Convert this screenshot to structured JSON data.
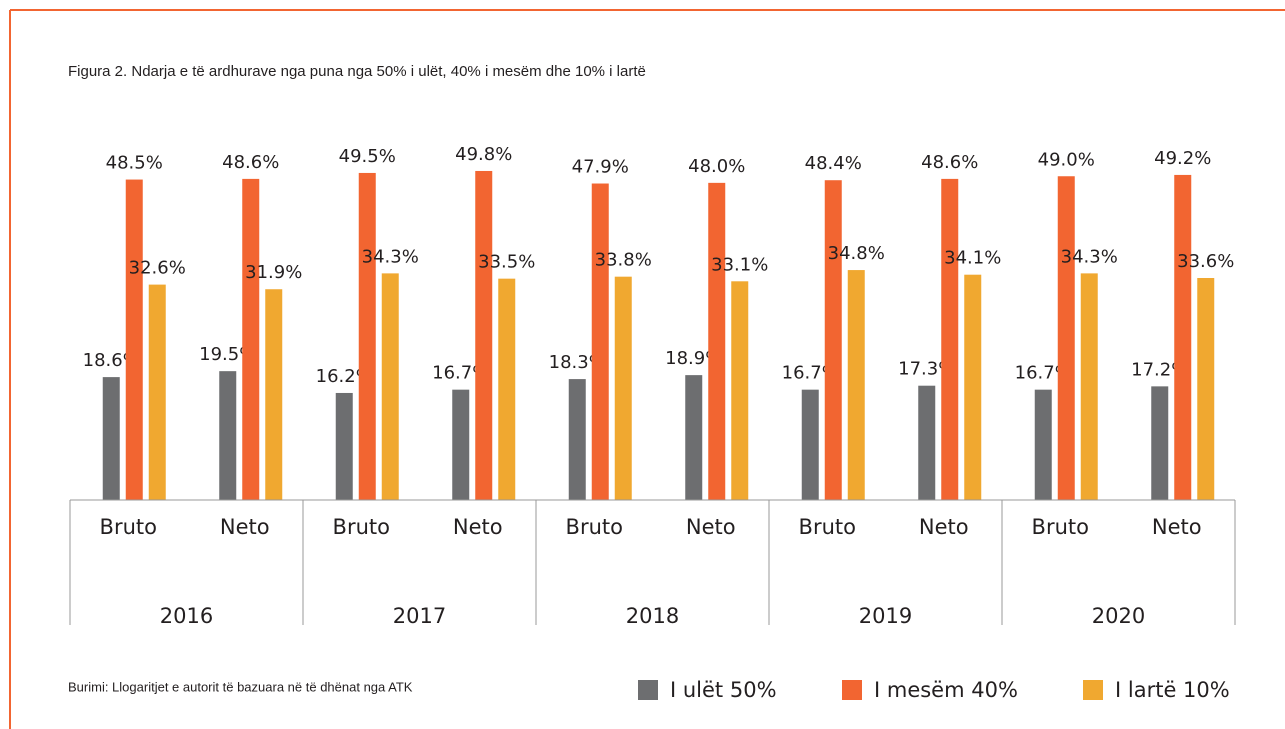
{
  "chart_data": {
    "type": "bar",
    "title": "Figura 2. Ndarja e të ardhurave nga puna nga 50% i ulët, 40% i mesëm dhe 10% i lartë",
    "source": "Burimi: Llogaritjet e autorit të bazuara në të dhënat nga ATK",
    "categories": [
      "Bruto",
      "Neto",
      "Bruto",
      "Neto",
      "Bruto",
      "Neto",
      "Bruto",
      "Neto",
      "Bruto",
      "Neto"
    ],
    "category_groups": [
      "2016",
      "2017",
      "2018",
      "2019",
      "2020"
    ],
    "ylim": [
      0,
      56
    ],
    "series": [
      {
        "name": "I ulët 50%",
        "color": "#6d6e70",
        "values": [
          18.6,
          19.5,
          16.2,
          16.7,
          18.3,
          18.9,
          16.7,
          17.3,
          16.7,
          17.2
        ],
        "value_labels": [
          "18.6%",
          "19.5%",
          "16.2%",
          "16.7%",
          "18.3%",
          "18.9%",
          "16.7%",
          "17.3%",
          "16.7%",
          "17.2%"
        ]
      },
      {
        "name": "I mesëm 40%",
        "color": "#f26531",
        "values": [
          48.5,
          48.6,
          49.5,
          49.8,
          47.9,
          48.0,
          48.4,
          48.6,
          49.0,
          49.2
        ],
        "value_labels": [
          "48.5%",
          "48.6%",
          "49.5%",
          "49.8%",
          "47.9%",
          "48.0%",
          "48.4%",
          "48.6%",
          "49.0%",
          "49.2%"
        ]
      },
      {
        "name": "I lartë 10%",
        "color": "#f0a830",
        "values": [
          32.6,
          31.9,
          34.3,
          33.5,
          33.8,
          33.1,
          34.8,
          34.1,
          34.3,
          33.6
        ],
        "value_labels": [
          "32.6%",
          "31.9%",
          "34.3%",
          "33.5%",
          "33.8%",
          "33.1%",
          "34.8%",
          "34.1%",
          "34.3%",
          "33.6%"
        ]
      }
    ]
  }
}
